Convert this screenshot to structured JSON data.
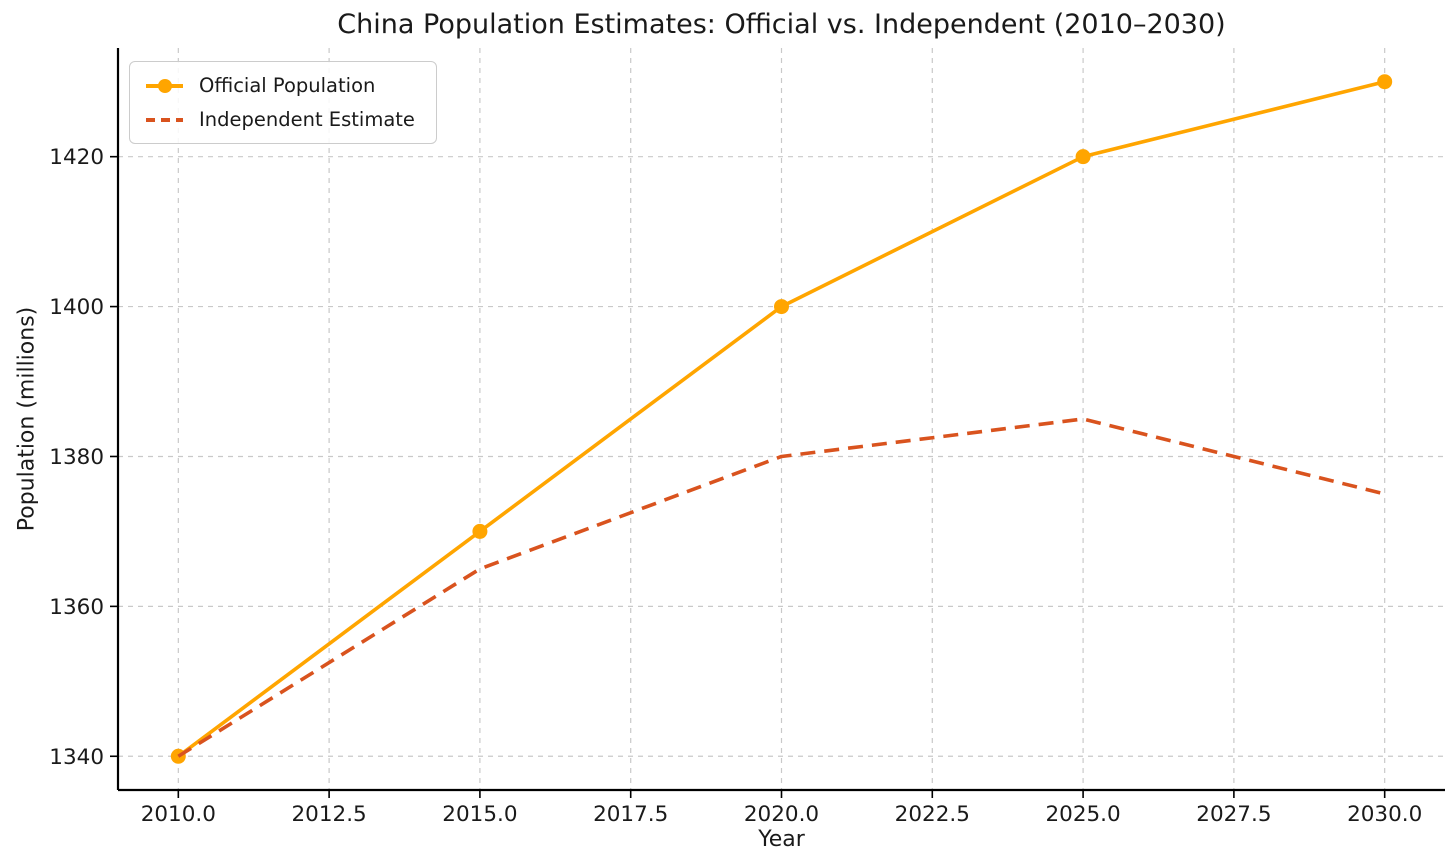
{
  "chart_data": {
    "type": "line",
    "title": "China Population Estimates: Official vs. Independent (2010–2030)",
    "xlabel": "Year",
    "ylabel": "Population (millions)",
    "x": [
      2010,
      2015,
      2020,
      2025,
      2030
    ],
    "series": [
      {
        "name": "Official Population",
        "values": [
          1340,
          1370,
          1400,
          1420,
          1430
        ],
        "color": "#FFA500",
        "line_style": "solid",
        "marker": "circle"
      },
      {
        "name": "Independent Estimate",
        "values": [
          1340,
          1365,
          1380,
          1385,
          1375
        ],
        "color": "#D9531E",
        "line_style": "dashed",
        "marker": "none"
      }
    ],
    "x_tick_values": [
      2010,
      2012.5,
      2015,
      2017.5,
      2020,
      2022.5,
      2025,
      2027.5,
      2030
    ],
    "x_tick_labels": [
      "2010.0",
      "2012.5",
      "2015.0",
      "2017.5",
      "2020.0",
      "2022.5",
      "2025.0",
      "2027.5",
      "2030.0"
    ],
    "y_tick_values": [
      1340,
      1360,
      1380,
      1400,
      1420
    ],
    "y_tick_labels": [
      "1340",
      "1360",
      "1380",
      "1400",
      "1420"
    ],
    "xlim": [
      2009,
      2031
    ],
    "ylim": [
      1335.5,
      1434.5
    ],
    "grid": true,
    "grid_style": "dashed",
    "legend_position": "upper left",
    "colors": {
      "grid": "#c9c9c9",
      "spine": "#000000",
      "text": "#1a1a1a",
      "legend_border": "#cccccc"
    }
  }
}
